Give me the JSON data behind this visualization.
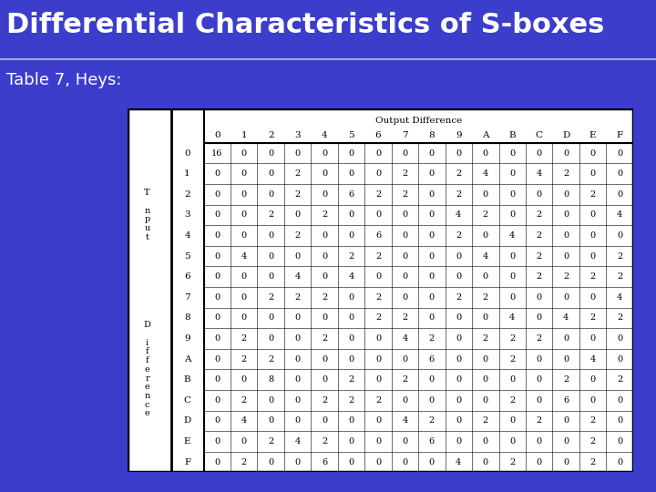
{
  "title": "Differential Characteristics of S-boxes",
  "subtitle": "Table 7, Heys:",
  "bg_color": "#3d3dcc",
  "title_color": "#ffffff",
  "subtitle_color": "#ffffff",
  "divider_color": "#aaaadd",
  "table_border_color": "#000000",
  "table_bg": "#ffffff",
  "output_label": "Output Difference",
  "col_headers": [
    "0",
    "1",
    "2",
    "3",
    "4",
    "5",
    "6",
    "7",
    "8",
    "9",
    "A",
    "B",
    "C",
    "D",
    "E",
    "F"
  ],
  "row_headers": [
    "0",
    "1",
    "2",
    "3",
    "4",
    "5",
    "6",
    "7",
    "8",
    "9",
    "A",
    "B",
    "C",
    "D",
    "E",
    "F"
  ],
  "input_label_chars": [
    "T",
    "",
    "n",
    "p",
    "u",
    "t"
  ],
  "diff_label_chars": [
    "D",
    "",
    "i",
    "f",
    "f",
    "e",
    "r",
    "e",
    "n",
    "c",
    "e"
  ],
  "table_data": [
    [
      16,
      0,
      0,
      0,
      0,
      0,
      0,
      0,
      0,
      0,
      0,
      0,
      0,
      0,
      0,
      0
    ],
    [
      0,
      0,
      0,
      2,
      0,
      0,
      0,
      2,
      0,
      2,
      4,
      0,
      4,
      2,
      0,
      0
    ],
    [
      0,
      0,
      0,
      2,
      0,
      6,
      2,
      2,
      0,
      2,
      0,
      0,
      0,
      0,
      2,
      0
    ],
    [
      0,
      0,
      2,
      0,
      2,
      0,
      0,
      0,
      0,
      4,
      2,
      0,
      2,
      0,
      0,
      4
    ],
    [
      0,
      0,
      0,
      2,
      0,
      0,
      6,
      0,
      0,
      2,
      0,
      4,
      2,
      0,
      0,
      0
    ],
    [
      0,
      4,
      0,
      0,
      0,
      2,
      2,
      0,
      0,
      0,
      4,
      0,
      2,
      0,
      0,
      2
    ],
    [
      0,
      0,
      0,
      4,
      0,
      4,
      0,
      0,
      0,
      0,
      0,
      0,
      2,
      2,
      2,
      2
    ],
    [
      0,
      0,
      2,
      2,
      2,
      0,
      2,
      0,
      0,
      2,
      2,
      0,
      0,
      0,
      0,
      4
    ],
    [
      0,
      0,
      0,
      0,
      0,
      0,
      2,
      2,
      0,
      0,
      0,
      4,
      0,
      4,
      2,
      2
    ],
    [
      0,
      2,
      0,
      0,
      2,
      0,
      0,
      4,
      2,
      0,
      2,
      2,
      2,
      0,
      0,
      0
    ],
    [
      0,
      2,
      2,
      0,
      0,
      0,
      0,
      0,
      6,
      0,
      0,
      2,
      0,
      0,
      4,
      0
    ],
    [
      0,
      0,
      8,
      0,
      0,
      2,
      0,
      2,
      0,
      0,
      0,
      0,
      0,
      2,
      0,
      2
    ],
    [
      0,
      2,
      0,
      0,
      2,
      2,
      2,
      0,
      0,
      0,
      0,
      2,
      0,
      6,
      0,
      0
    ],
    [
      0,
      4,
      0,
      0,
      0,
      0,
      0,
      4,
      2,
      0,
      2,
      0,
      2,
      0,
      2,
      0
    ],
    [
      0,
      0,
      2,
      4,
      2,
      0,
      0,
      0,
      6,
      0,
      0,
      0,
      0,
      0,
      2,
      0
    ],
    [
      0,
      2,
      0,
      0,
      6,
      0,
      0,
      0,
      0,
      4,
      0,
      2,
      0,
      0,
      2,
      0
    ]
  ],
  "title_fontsize": 22,
  "subtitle_fontsize": 13,
  "cell_fontsize": 7,
  "header_fontsize": 7.5,
  "outlabel_fontsize": 7.5,
  "sidlabel_fontsize": 7
}
